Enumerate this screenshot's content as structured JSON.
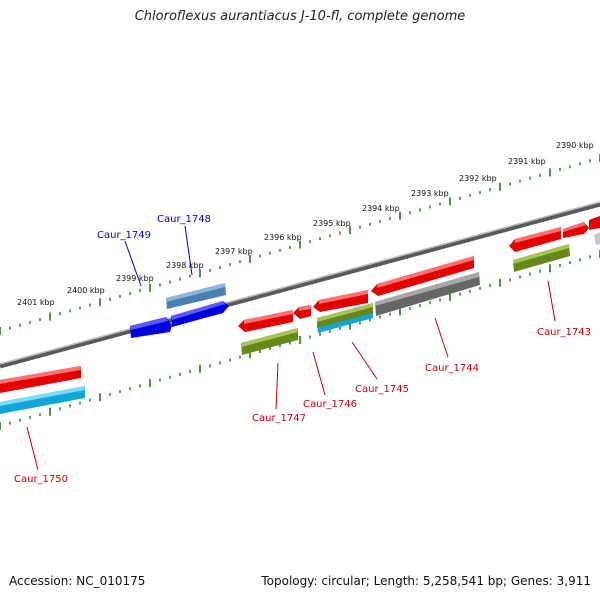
{
  "header": {
    "title": "Chloroflexus aurantiacus J-10-fl, complete genome"
  },
  "footer": {
    "accession": "Accession: NC_010175",
    "stats": "Topology: circular; Length: 5,258,541 bp; Genes: 3,911"
  },
  "colors": {
    "backbone": "#777777",
    "tick": "#1a7a1a",
    "forward_gene": "#ee0000",
    "reverse_gene_blue": "#0000dd",
    "steel_gene": "#4a7fb0",
    "olive_gene": "#6b8a1f",
    "cyan_gene": "#11a8d8",
    "gray_gene": "#666666",
    "label_red": "#cc0000",
    "label_blue": "#0000cc"
  },
  "kbp_labels": [
    "2390 kbp",
    "2391 kbp",
    "2392 kbp",
    "2393 kbp",
    "2394 kbp",
    "2395 kbp",
    "2396 kbp",
    "2397 kbp",
    "2398 kbp",
    "2399 kbp",
    "2400 kbp",
    "2401 kbp"
  ],
  "gene_labels": [
    {
      "text": "Caur_1743",
      "color": "red"
    },
    {
      "text": "Caur_1744",
      "color": "red"
    },
    {
      "text": "Caur_1745",
      "color": "red"
    },
    {
      "text": "Caur_1746",
      "color": "red"
    },
    {
      "text": "Caur_1747",
      "color": "red"
    },
    {
      "text": "Caur_1748",
      "color": "blue"
    },
    {
      "text": "Caur_1749",
      "color": "blue"
    },
    {
      "text": "Caur_1750",
      "color": "red"
    }
  ]
}
